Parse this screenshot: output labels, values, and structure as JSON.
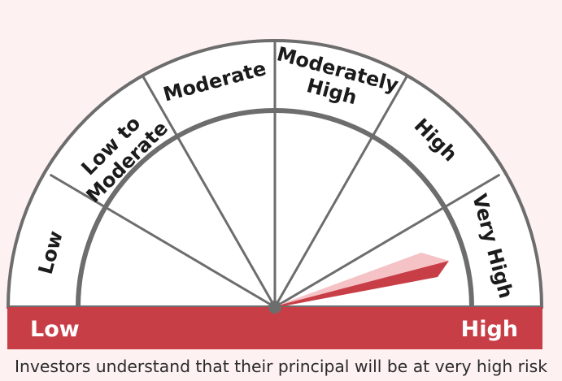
{
  "riskometer": {
    "levels": [
      "Low",
      "Low to Moderate",
      "Moderate",
      "Moderately High",
      "High",
      "Very High"
    ],
    "selected_level": "Very High",
    "scale_left_label": "Low",
    "scale_right_label": "High",
    "caption": "Investors understand that their principal will be at very high risk",
    "colors": {
      "background": "#fdf1f2",
      "dial_fill": "#ffffff",
      "dial_stroke": "#6d6d6d",
      "bar": "#c83e47",
      "needle_dark": "#c83e47",
      "needle_light": "#f5c3c6"
    }
  }
}
